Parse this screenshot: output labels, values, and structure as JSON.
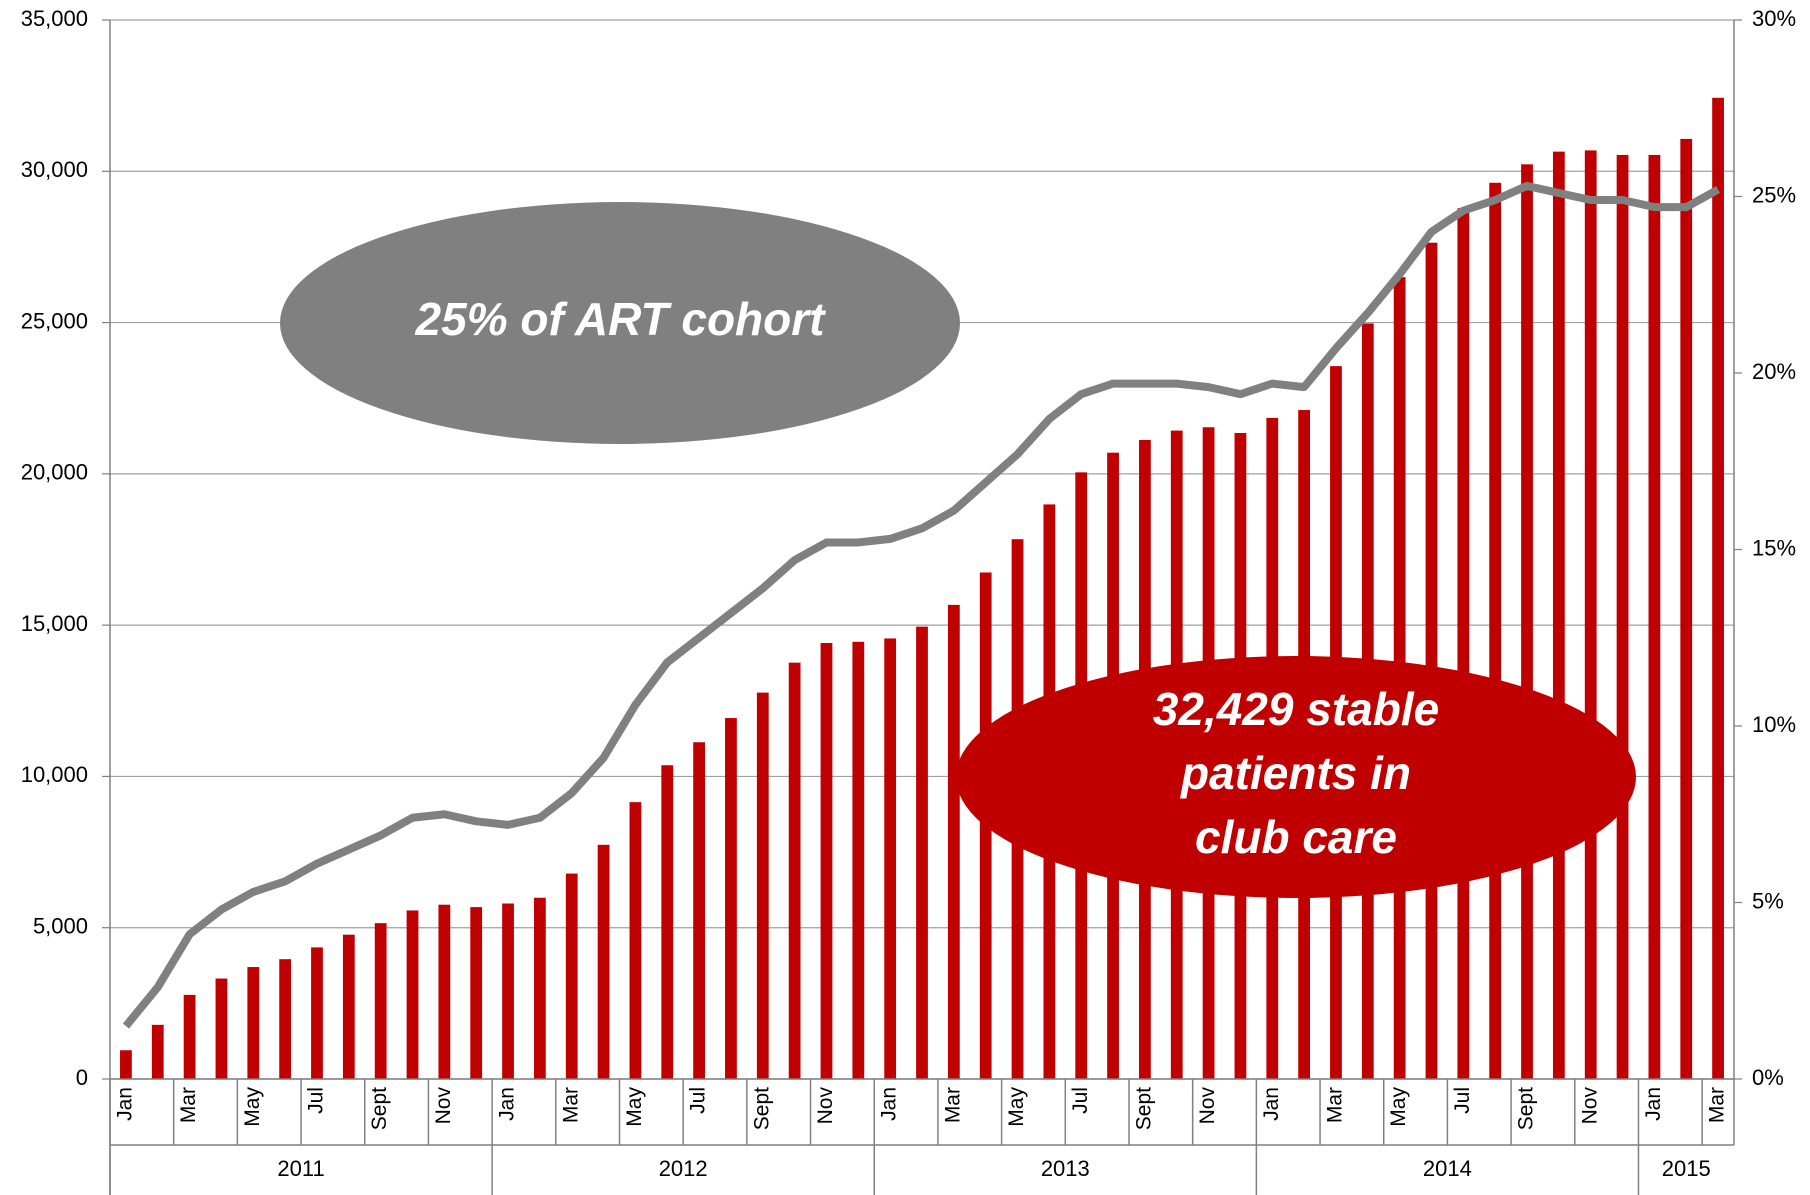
{
  "chart_data": {
    "type": "bar",
    "categories": [
      "Jan",
      null,
      "Mar",
      null,
      "May",
      null,
      "Jul",
      null,
      "Sept",
      null,
      "Nov",
      null,
      "Jan",
      null,
      "Mar",
      null,
      "May",
      null,
      "Jul",
      null,
      "Sept",
      null,
      "Nov",
      null,
      "Jan",
      null,
      "Mar",
      null,
      "May",
      null,
      "Jul",
      null,
      "Sept",
      null,
      "Nov",
      null,
      "Jan",
      null,
      "Mar",
      null,
      "May",
      null,
      "Jul",
      null,
      "Sept",
      null,
      "Nov",
      null,
      "Jan",
      null,
      "Mar"
    ],
    "x_groups": [
      {
        "label": "2011",
        "count": 12
      },
      {
        "label": "2012",
        "count": 12
      },
      {
        "label": "2013",
        "count": 12
      },
      {
        "label": "2014",
        "count": 12
      },
      {
        "label": "2015",
        "count": 3
      }
    ],
    "series": [
      {
        "type": "bar",
        "color": "#c00000",
        "values": [
          950,
          1790,
          2780,
          3320,
          3700,
          3960,
          4350,
          4770,
          5150,
          5570,
          5760,
          5680,
          5800,
          5990,
          6790,
          7740,
          9150,
          10370,
          11130,
          11930,
          12770,
          13760,
          14410,
          14450,
          14560,
          14950,
          15670,
          16740,
          17840,
          18990,
          20050,
          20700,
          21120,
          21430,
          21540,
          21350,
          21850,
          22110,
          23560,
          24970,
          26500,
          27640,
          28780,
          29620,
          30230,
          30650,
          30690,
          30540,
          30540,
          31070,
          32429
        ]
      },
      {
        "type": "line",
        "axis": "y2",
        "color": "#808080",
        "values": [
          1.5,
          2.6,
          4.1,
          4.8,
          5.3,
          5.6,
          6.1,
          6.5,
          6.9,
          7.4,
          7.5,
          7.3,
          7.2,
          7.4,
          8.1,
          9.1,
          10.6,
          11.8,
          12.5,
          13.2,
          13.9,
          14.7,
          15.2,
          15.2,
          15.3,
          15.6,
          16.1,
          16.9,
          17.7,
          18.7,
          19.4,
          19.7,
          19.7,
          19.7,
          19.6,
          19.4,
          19.7,
          19.6,
          20.7,
          21.7,
          22.8,
          24.0,
          24.6,
          24.9,
          25.3,
          25.1,
          24.9,
          24.9,
          24.7,
          24.7,
          25.2
        ]
      }
    ],
    "ylim": [
      0,
      35000
    ],
    "yticks": [
      0,
      {
        "value": 5000,
        "label": "5,000"
      },
      {
        "value": 10000,
        "label": "10,000"
      },
      {
        "value": 15000,
        "label": "15,000"
      },
      {
        "value": 20000,
        "label": "20,000"
      },
      {
        "value": 25000,
        "label": "25,000"
      },
      {
        "value": 30000,
        "label": "30,000"
      },
      {
        "value": 35000,
        "label": "35,000"
      }
    ],
    "y2lim": [
      0,
      30
    ],
    "y2ticks": [
      {
        "value": 0,
        "label": "0%"
      },
      {
        "value": 5,
        "label": "5%"
      },
      {
        "value": 10,
        "label": "10%"
      },
      {
        "value": 15,
        "label": "15%"
      },
      {
        "value": 20,
        "label": "20%"
      },
      {
        "value": 25,
        "label": "25%"
      },
      {
        "value": 30,
        "label": "30%"
      }
    ],
    "grid": true,
    "annotations": [
      {
        "color": "#808080",
        "lines": [
          "25% of ART cohort"
        ]
      },
      {
        "color": "#c00000",
        "lines": [
          "32,429 stable",
          "patients in",
          "club care"
        ]
      }
    ]
  }
}
